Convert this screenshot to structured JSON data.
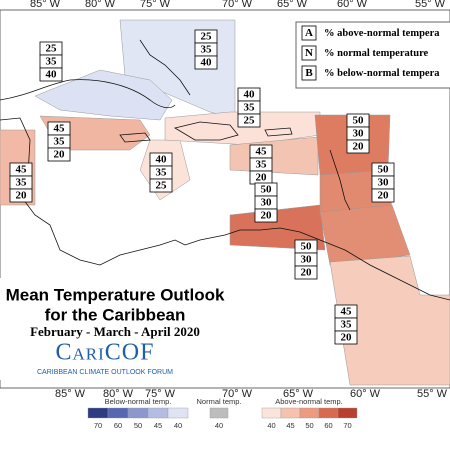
{
  "longitudes": {
    "top": [
      "85° W",
      "80° W",
      "75° W",
      "70° W",
      "65° W",
      "60° W",
      "55° W"
    ],
    "bottom": [
      "85° W",
      "80° W",
      "75° W",
      "70° W",
      "65° W",
      "60° W",
      "55° W"
    ]
  },
  "legend": {
    "rows": [
      {
        "key": "A",
        "text": "% above-normal tempera"
      },
      {
        "key": "N",
        "text": "% normal temperature"
      },
      {
        "key": "B",
        "text": "% below-normal tempera"
      }
    ]
  },
  "regions": [
    {
      "values": [
        25,
        35,
        40
      ],
      "color": "#e1e6f5"
    },
    {
      "values": [
        25,
        35,
        40
      ],
      "color": "#dce2f3"
    },
    {
      "values": [
        45,
        35,
        20
      ],
      "color": "#f1b9a6"
    },
    {
      "values": [
        45,
        35,
        20
      ],
      "color": "#f0b6a2"
    },
    {
      "values": [
        40,
        35,
        25
      ],
      "color": "#fbe3da"
    },
    {
      "values": [
        40,
        35,
        25
      ],
      "color": "#fbe1d8"
    },
    {
      "values": [
        45,
        35,
        20
      ],
      "color": "#f4c4b3"
    },
    {
      "values": [
        50,
        30,
        20
      ],
      "color": "#d9725a"
    },
    {
      "values": [
        50,
        30,
        20
      ],
      "color": "#de7c62"
    },
    {
      "values": [
        50,
        30,
        20
      ],
      "color": "#e18a70"
    },
    {
      "values": [
        50,
        30,
        20
      ],
      "color": "#e28e74"
    },
    {
      "values": [
        45,
        35,
        20
      ],
      "color": "#f6ccbc"
    }
  ],
  "title": {
    "line1": "Mean Temperature Outlook",
    "line2": "for the Caribbean",
    "period": "February - March - April 2020",
    "logo": "CariCOF",
    "logo_subtitle": "CARIBBEAN CLIMATE OUTLOOK FORUM"
  },
  "colorbar": {
    "below": {
      "label": "Below-normal temp.",
      "ticks": [
        70,
        60,
        50,
        45,
        40
      ],
      "colors": [
        "#2c3b82",
        "#5666b1",
        "#8b97cd",
        "#b4bce1",
        "#dfe3f3"
      ]
    },
    "normal": {
      "label": "Normal temp.",
      "ticks": [
        40
      ],
      "colors": [
        "#bdbdbd"
      ]
    },
    "above": {
      "label": "Above-normal temp.",
      "ticks": [
        40,
        45,
        50,
        60,
        70
      ],
      "colors": [
        "#fbe4dc",
        "#f5c2b0",
        "#ec9a80",
        "#d86a50",
        "#b8402e"
      ]
    }
  }
}
